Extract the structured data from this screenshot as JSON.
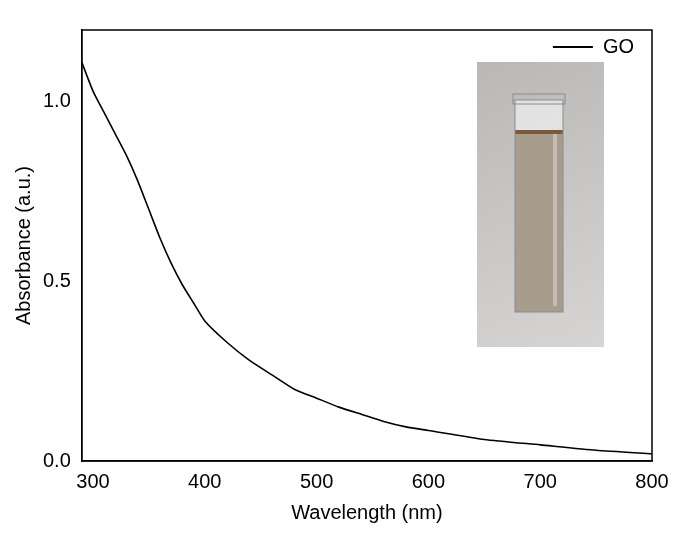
{
  "chart_data": {
    "type": "line",
    "x_label": "Wavelength (nm)",
    "y_label": "Absorbance (a.u.)",
    "x": [
      290,
      300,
      310,
      320,
      330,
      340,
      350,
      360,
      370,
      380,
      390,
      400,
      420,
      440,
      460,
      480,
      500,
      520,
      540,
      560,
      580,
      600,
      650,
      700,
      750,
      800
    ],
    "series": [
      {
        "name": "GO",
        "color": "#000000",
        "values": [
          1.11,
          1.03,
          0.97,
          0.91,
          0.85,
          0.78,
          0.7,
          0.62,
          0.55,
          0.49,
          0.44,
          0.39,
          0.33,
          0.28,
          0.24,
          0.2,
          0.175,
          0.15,
          0.13,
          0.11,
          0.095,
          0.085,
          0.06,
          0.045,
          0.03,
          0.02
        ]
      }
    ],
    "xlim": [
      290,
      800
    ],
    "xticks": [
      300,
      400,
      500,
      600,
      700,
      800
    ],
    "ylim": [
      0,
      1.2
    ],
    "yticks": [
      {
        "value": 0,
        "label": "0.0"
      },
      0.5,
      {
        "value": 1,
        "label": "1.0"
      }
    ],
    "grid": false,
    "legend": "top-right"
  }
}
